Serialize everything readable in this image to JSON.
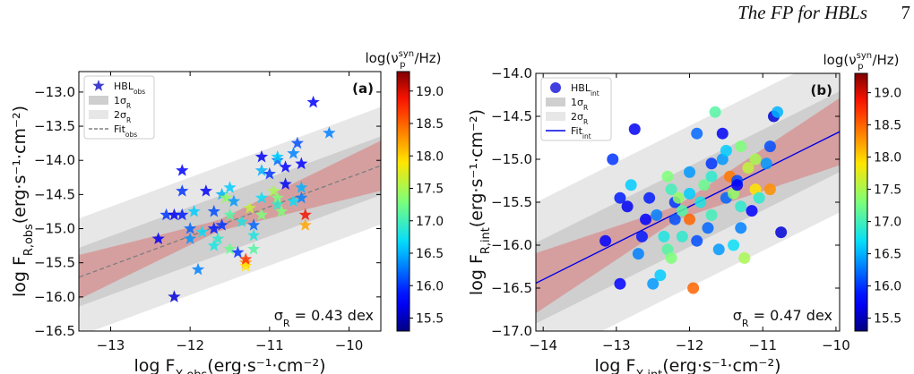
{
  "header": {
    "running_title": "The FP for HBLs",
    "page_number": "7"
  },
  "colors": {
    "fit_obs": "#808080",
    "fit_int": "#0000e6",
    "band1": "#cfcfcf",
    "band2": "#e7e7e7",
    "confidence": "#d98a8a"
  },
  "chart_data": [
    {
      "type": "scatter",
      "panel_label": "(a)",
      "marker": "star",
      "xlabel": "log F_X,obs(erg·s⁻¹·cm⁻²)",
      "ylabel": "log F_R,obs(erg·s⁻¹·cm⁻²)",
      "xlim": [
        -13.4,
        -9.6
      ],
      "ylim": [
        -16.5,
        -12.7
      ],
      "xticks": [
        -13,
        -12,
        -11,
        -10
      ],
      "yticks": [
        -16.5,
        -16.0,
        -15.5,
        -15.0,
        -14.5,
        -14.0,
        -13.5,
        -13.0
      ],
      "xtick_labels": [
        "−13",
        "−12",
        "−11",
        "−10"
      ],
      "ytick_labels": [
        "−16.5",
        "−16.0",
        "−15.5",
        "−15.0",
        "−14.5",
        "−14.0",
        "−13.5",
        "−13.0"
      ],
      "legend": [
        {
          "label": "HBL",
          "sub": "obs",
          "kind": "marker"
        },
        {
          "label": "1σ",
          "sub": "R",
          "kind": "band1"
        },
        {
          "label": "2σ",
          "sub": "R",
          "kind": "band2"
        },
        {
          "label": "Fit",
          "sub": "obs",
          "kind": "dashed"
        }
      ],
      "legend_position": "upper-left",
      "sigma_label": "σ",
      "sigma_sub": "R",
      "sigma_value": " = 0.43 dex",
      "fit": {
        "slope": 0.43,
        "intercept": -9.95,
        "style": "dashed"
      },
      "sigma": 0.43,
      "colorbar": {
        "label": "log(ν_p^syn/Hz)",
        "range": [
          15.3,
          19.3
        ],
        "ticks": [
          15.5,
          16.0,
          16.5,
          17.0,
          17.5,
          18.0,
          18.5,
          19.0
        ],
        "tick_labels": [
          "15.5",
          "16.0",
          "16.5",
          "17.0",
          "17.5",
          "18.0",
          "18.5",
          "19.0"
        ]
      },
      "points": [
        [
          -12.2,
          -16.0,
          15.6
        ],
        [
          -12.1,
          -14.15,
          15.8
        ],
        [
          -12.1,
          -14.45,
          16.0
        ],
        [
          -12.4,
          -15.15,
          15.7
        ],
        [
          -12.3,
          -14.8,
          16.0
        ],
        [
          -12.2,
          -14.8,
          15.7
        ],
        [
          -12.1,
          -14.8,
          15.9
        ],
        [
          -12.0,
          -15.0,
          16.2
        ],
        [
          -12.0,
          -15.15,
          16.4
        ],
        [
          -11.9,
          -15.6,
          16.3
        ],
        [
          -11.8,
          -14.45,
          15.7
        ],
        [
          -11.7,
          -14.75,
          16.1
        ],
        [
          -11.6,
          -14.5,
          16.5
        ],
        [
          -11.55,
          -14.55,
          17.4
        ],
        [
          -11.5,
          -14.4,
          16.6
        ],
        [
          -11.6,
          -14.95,
          16.0
        ],
        [
          -11.5,
          -14.8,
          17.1
        ],
        [
          -11.7,
          -15.0,
          15.9
        ],
        [
          -11.7,
          -15.25,
          16.8
        ],
        [
          -11.5,
          -15.3,
          17.2
        ],
        [
          -11.4,
          -15.35,
          16.0
        ],
        [
          -11.3,
          -15.5,
          18.3
        ],
        [
          -11.3,
          -15.55,
          17.9
        ],
        [
          -11.3,
          -15.45,
          18.7
        ],
        [
          -11.2,
          -15.3,
          17.1
        ],
        [
          -11.2,
          -15.1,
          16.8
        ],
        [
          -11.2,
          -14.95,
          16.2
        ],
        [
          -11.1,
          -14.8,
          17.3
        ],
        [
          -11.1,
          -14.55,
          16.7
        ],
        [
          -11.1,
          -14.15,
          16.5
        ],
        [
          -11.1,
          -13.95,
          15.7
        ],
        [
          -11.0,
          -14.2,
          16.0
        ],
        [
          -10.95,
          -14.45,
          17.5
        ],
        [
          -10.9,
          -14.55,
          17.3
        ],
        [
          -10.9,
          -14.65,
          16.9
        ],
        [
          -10.85,
          -14.75,
          17.3
        ],
        [
          -10.8,
          -14.35,
          15.7
        ],
        [
          -10.8,
          -14.1,
          15.8
        ],
        [
          -10.9,
          -14.0,
          16.2
        ],
        [
          -10.9,
          -13.95,
          16.6
        ],
        [
          -10.7,
          -13.9,
          16.3
        ],
        [
          -10.65,
          -13.75,
          16.1
        ],
        [
          -10.6,
          -14.05,
          15.8
        ],
        [
          -10.6,
          -14.4,
          16.5
        ],
        [
          -10.6,
          -14.55,
          16.3
        ],
        [
          -10.7,
          -14.6,
          16.7
        ],
        [
          -10.55,
          -14.8,
          18.9
        ],
        [
          -10.55,
          -14.95,
          18.2
        ],
        [
          -10.45,
          -13.15,
          15.8
        ],
        [
          -10.25,
          -13.6,
          16.3
        ],
        [
          -11.95,
          -14.75,
          16.6
        ],
        [
          -11.45,
          -14.6,
          16.4
        ],
        [
          -11.35,
          -14.9,
          16.8
        ],
        [
          -11.25,
          -14.7,
          17.6
        ],
        [
          -11.65,
          -15.15,
          16.9
        ],
        [
          -11.85,
          -15.05,
          16.7
        ]
      ]
    },
    {
      "type": "scatter",
      "panel_label": "(b)",
      "marker": "circle",
      "xlabel": "log F_X,int(erg·s⁻¹·cm⁻²)",
      "ylabel": "log F_R,int(erg·s⁻¹·cm⁻²)",
      "xlim": [
        -14.1,
        -9.95
      ],
      "ylim": [
        -17.0,
        -14.0
      ],
      "xticks": [
        -14,
        -13,
        -12,
        -11,
        -10
      ],
      "yticks": [
        -17.0,
        -16.5,
        -16.0,
        -15.5,
        -15.0,
        -14.5,
        -14.0
      ],
      "xtick_labels": [
        "−14",
        "−13",
        "−12",
        "−11",
        "−10"
      ],
      "ytick_labels": [
        "−17.0",
        "−16.5",
        "−16.0",
        "−15.5",
        "−15.0",
        "−14.5",
        "−14.0"
      ],
      "legend": [
        {
          "label": "HBL",
          "sub": "int",
          "kind": "marker"
        },
        {
          "label": "1σ",
          "sub": "R",
          "kind": "band1"
        },
        {
          "label": "2σ",
          "sub": "R",
          "kind": "band2"
        },
        {
          "label": "Fit",
          "sub": "int",
          "kind": "solid"
        }
      ],
      "legend_position": "upper-left",
      "sigma_label": "σ",
      "sigma_sub": "R",
      "sigma_value": " = 0.47 dex",
      "fit": {
        "slope": 0.425,
        "intercept": -10.45,
        "style": "solid"
      },
      "sigma": 0.47,
      "colorbar": {
        "label": "log(ν_p^syn/Hz)",
        "range": [
          15.3,
          19.3
        ],
        "ticks": [
          15.5,
          16.0,
          16.5,
          17.0,
          17.5,
          18.0,
          18.5,
          19.0
        ],
        "tick_labels": [
          "15.5",
          "16.0",
          "16.5",
          "17.0",
          "17.5",
          "18.0",
          "18.5",
          "19.0"
        ]
      },
      "points": [
        [
          -13.05,
          -15.0,
          16.0
        ],
        [
          -12.75,
          -14.65,
          15.7
        ],
        [
          -13.15,
          -15.95,
          15.8
        ],
        [
          -12.95,
          -15.45,
          15.9
        ],
        [
          -12.85,
          -15.55,
          15.7
        ],
        [
          -12.8,
          -15.3,
          16.6
        ],
        [
          -12.95,
          -16.45,
          15.8
        ],
        [
          -12.7,
          -16.1,
          16.3
        ],
        [
          -12.6,
          -15.7,
          15.8
        ],
        [
          -12.55,
          -15.45,
          15.9
        ],
        [
          -12.5,
          -16.45,
          16.4
        ],
        [
          -12.4,
          -16.35,
          16.6
        ],
        [
          -12.35,
          -15.9,
          16.8
        ],
        [
          -12.3,
          -16.05,
          17.1
        ],
        [
          -12.25,
          -16.15,
          17.3
        ],
        [
          -12.2,
          -15.7,
          16.1
        ],
        [
          -12.2,
          -15.5,
          16.0
        ],
        [
          -12.25,
          -15.35,
          17.0
        ],
        [
          -12.3,
          -15.2,
          17.3
        ],
        [
          -12.15,
          -15.45,
          17.4
        ],
        [
          -12.1,
          -15.6,
          17.1
        ],
        [
          -12.1,
          -15.9,
          16.9
        ],
        [
          -12.0,
          -15.7,
          18.5
        ],
        [
          -12.0,
          -15.4,
          16.6
        ],
        [
          -12.0,
          -15.15,
          16.4
        ],
        [
          -11.95,
          -16.5,
          18.5
        ],
        [
          -11.9,
          -15.95,
          16.1
        ],
        [
          -11.9,
          -14.7,
          16.2
        ],
        [
          -11.85,
          -15.5,
          16.8
        ],
        [
          -11.8,
          -15.3,
          17.2
        ],
        [
          -11.7,
          -15.05,
          16.0
        ],
        [
          -11.7,
          -15.2,
          16.9
        ],
        [
          -11.7,
          -15.65,
          17.0
        ],
        [
          -11.65,
          -14.45,
          17.1
        ],
        [
          -11.6,
          -16.05,
          16.4
        ],
        [
          -11.55,
          -14.7,
          15.7
        ],
        [
          -11.55,
          -15.0,
          16.4
        ],
        [
          -11.5,
          -15.45,
          16.2
        ],
        [
          -11.5,
          -14.9,
          16.6
        ],
        [
          -11.45,
          -15.2,
          18.4
        ],
        [
          -11.4,
          -15.4,
          17.4
        ],
        [
          -11.4,
          -16.0,
          16.7
        ],
        [
          -11.35,
          -15.25,
          16.1
        ],
        [
          -11.35,
          -15.3,
          15.7
        ],
        [
          -11.3,
          -15.55,
          16.9
        ],
        [
          -11.3,
          -14.85,
          17.3
        ],
        [
          -11.3,
          -15.8,
          16.3
        ],
        [
          -11.25,
          -16.15,
          17.5
        ],
        [
          -11.2,
          -15.1,
          17.6
        ],
        [
          -11.15,
          -15.6,
          15.8
        ],
        [
          -11.1,
          -15.35,
          17.9
        ],
        [
          -11.1,
          -15.0,
          17.5
        ],
        [
          -11.05,
          -15.45,
          16.9
        ],
        [
          -10.95,
          -15.05,
          16.4
        ],
        [
          -10.9,
          -15.35,
          18.3
        ],
        [
          -10.85,
          -14.5,
          15.6
        ],
        [
          -10.8,
          -14.45,
          16.5
        ],
        [
          -10.75,
          -15.85,
          15.6
        ],
        [
          -10.9,
          -14.85,
          16.1
        ],
        [
          -12.45,
          -15.65,
          16.3
        ],
        [
          -12.65,
          -15.9,
          15.9
        ],
        [
          -11.75,
          -15.8,
          16.2
        ]
      ]
    }
  ]
}
